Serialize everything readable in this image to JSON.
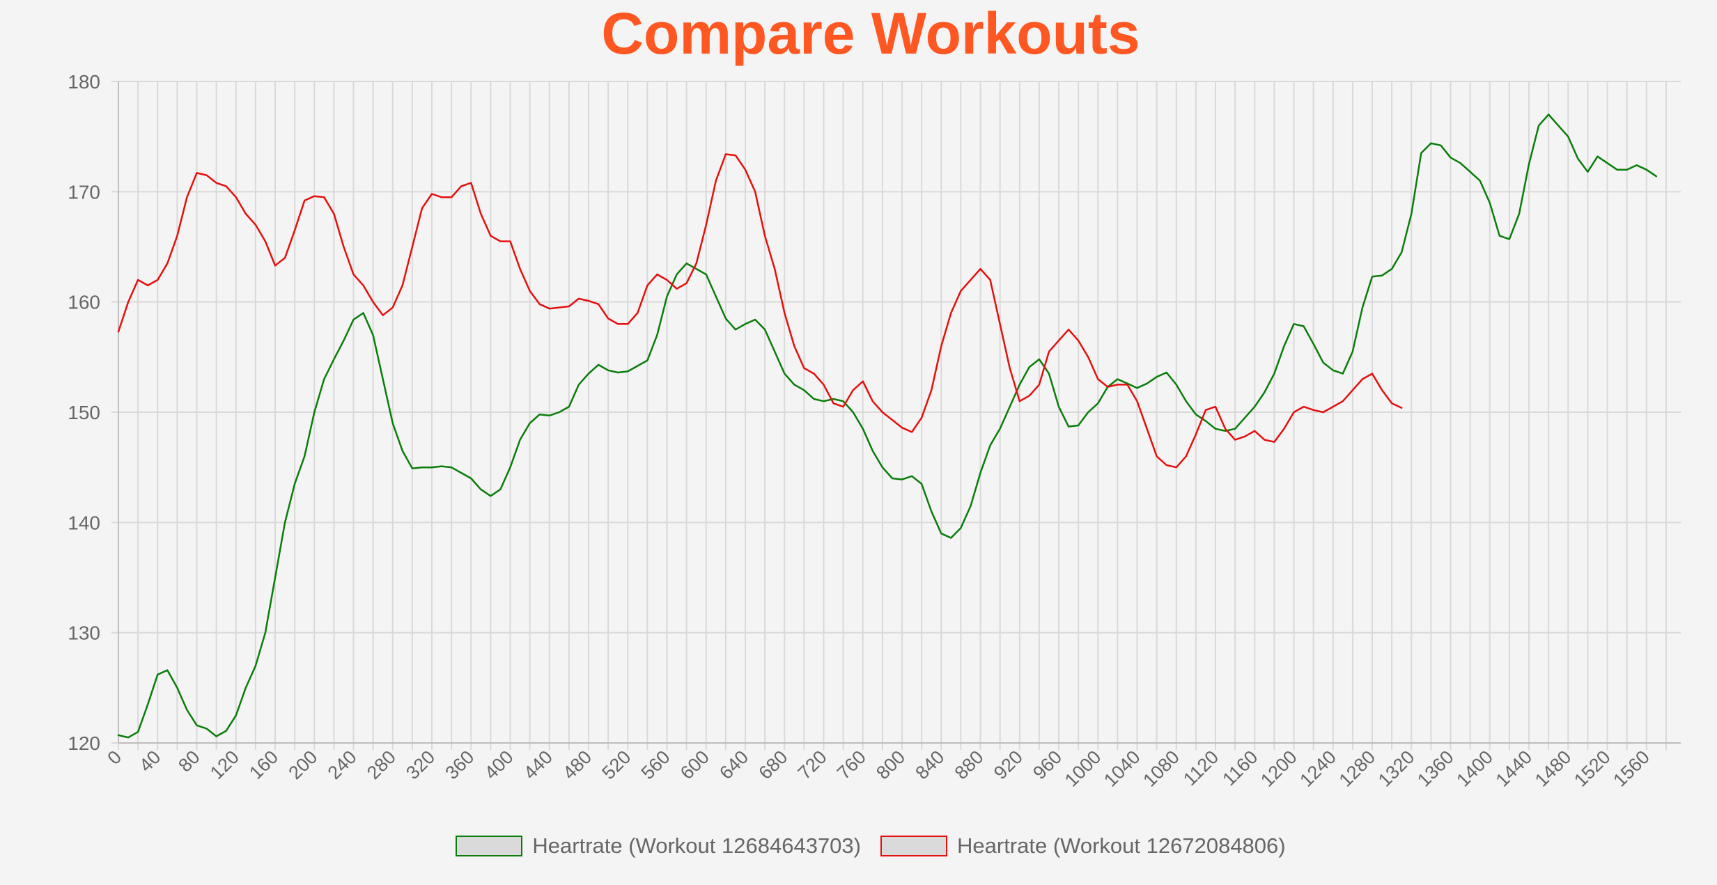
{
  "title": "Compare Workouts",
  "colors": {
    "title": "#ff5722",
    "grid": "#d9d9d9",
    "tick_text": "#666666",
    "legend_fill": "#dadada"
  },
  "chart_data": {
    "type": "line",
    "title": "Compare Workouts",
    "xlabel": "",
    "ylabel": "",
    "xlim": [
      0,
      1595
    ],
    "ylim": [
      120,
      180
    ],
    "x_tick_step": 20,
    "x_tick_labels": [
      "0",
      "40",
      "80",
      "120",
      "160",
      "200",
      "240",
      "280",
      "320",
      "360",
      "400",
      "440",
      "480",
      "520",
      "560",
      "600",
      "640",
      "680",
      "720",
      "760",
      "800",
      "840",
      "880",
      "920",
      "960",
      "1000",
      "1040",
      "1080",
      "1120",
      "1160",
      "1200",
      "1240",
      "1280",
      "1320",
      "1360",
      "1400",
      "1440",
      "1480",
      "1520",
      "1560"
    ],
    "y_ticks": [
      120,
      130,
      140,
      150,
      160,
      170,
      180
    ],
    "grid": true,
    "legend_position": "bottom-center",
    "series": [
      {
        "name": "Heartrate (Workout 12684643703)",
        "color": "#0a7d0a",
        "points": [
          [
            0,
            120.7
          ],
          [
            10,
            120.5
          ],
          [
            20,
            121
          ],
          [
            30,
            123.5
          ],
          [
            40,
            126.2
          ],
          [
            50,
            126.6
          ],
          [
            60,
            125
          ],
          [
            70,
            123
          ],
          [
            80,
            121.6
          ],
          [
            90,
            121.3
          ],
          [
            100,
            120.6
          ],
          [
            110,
            121.1
          ],
          [
            120,
            122.5
          ],
          [
            130,
            125
          ],
          [
            140,
            127
          ],
          [
            150,
            130
          ],
          [
            160,
            135
          ],
          [
            170,
            140
          ],
          [
            180,
            143.5
          ],
          [
            190,
            146
          ],
          [
            200,
            150
          ],
          [
            210,
            153
          ],
          [
            220,
            154.8
          ],
          [
            230,
            156.5
          ],
          [
            240,
            158.4
          ],
          [
            250,
            159
          ],
          [
            260,
            157
          ],
          [
            270,
            153
          ],
          [
            280,
            149
          ],
          [
            290,
            146.5
          ],
          [
            300,
            144.9
          ],
          [
            310,
            145
          ],
          [
            320,
            145
          ],
          [
            330,
            145.1
          ],
          [
            340,
            145
          ],
          [
            350,
            144.5
          ],
          [
            360,
            144
          ],
          [
            370,
            143
          ],
          [
            380,
            142.4
          ],
          [
            390,
            143
          ],
          [
            400,
            145
          ],
          [
            410,
            147.5
          ],
          [
            420,
            149
          ],
          [
            430,
            149.8
          ],
          [
            440,
            149.7
          ],
          [
            450,
            150
          ],
          [
            460,
            150.5
          ],
          [
            470,
            152.5
          ],
          [
            480,
            153.5
          ],
          [
            490,
            154.3
          ],
          [
            500,
            153.8
          ],
          [
            510,
            153.6
          ],
          [
            520,
            153.7
          ],
          [
            530,
            154.2
          ],
          [
            540,
            154.7
          ],
          [
            550,
            157
          ],
          [
            560,
            160.5
          ],
          [
            570,
            162.5
          ],
          [
            580,
            163.5
          ],
          [
            590,
            163
          ],
          [
            600,
            162.5
          ],
          [
            610,
            160.5
          ],
          [
            620,
            158.5
          ],
          [
            630,
            157.5
          ],
          [
            640,
            158
          ],
          [
            650,
            158.4
          ],
          [
            660,
            157.5
          ],
          [
            670,
            155.5
          ],
          [
            680,
            153.5
          ],
          [
            690,
            152.5
          ],
          [
            700,
            152
          ],
          [
            710,
            151.2
          ],
          [
            720,
            151
          ],
          [
            730,
            151.2
          ],
          [
            740,
            151
          ],
          [
            750,
            150
          ],
          [
            760,
            148.5
          ],
          [
            770,
            146.5
          ],
          [
            780,
            145
          ],
          [
            790,
            144
          ],
          [
            800,
            143.9
          ],
          [
            810,
            144.2
          ],
          [
            820,
            143.5
          ],
          [
            830,
            141
          ],
          [
            840,
            139
          ],
          [
            850,
            138.6
          ],
          [
            860,
            139.5
          ],
          [
            870,
            141.5
          ],
          [
            880,
            144.5
          ],
          [
            890,
            147
          ],
          [
            900,
            148.5
          ],
          [
            910,
            150.5
          ],
          [
            920,
            152.5
          ],
          [
            930,
            154.1
          ],
          [
            940,
            154.8
          ],
          [
            950,
            153.5
          ],
          [
            960,
            150.5
          ],
          [
            970,
            148.7
          ],
          [
            980,
            148.8
          ],
          [
            990,
            150
          ],
          [
            1000,
            150.8
          ],
          [
            1010,
            152.3
          ],
          [
            1020,
            153
          ],
          [
            1030,
            152.6
          ],
          [
            1040,
            152.2
          ],
          [
            1050,
            152.6
          ],
          [
            1060,
            153.2
          ],
          [
            1070,
            153.6
          ],
          [
            1080,
            152.5
          ],
          [
            1090,
            151
          ],
          [
            1100,
            149.8
          ],
          [
            1110,
            149.2
          ],
          [
            1120,
            148.5
          ],
          [
            1130,
            148.3
          ],
          [
            1140,
            148.5
          ],
          [
            1150,
            149.5
          ],
          [
            1160,
            150.5
          ],
          [
            1170,
            151.8
          ],
          [
            1180,
            153.5
          ],
          [
            1190,
            156
          ],
          [
            1200,
            158
          ],
          [
            1210,
            157.8
          ],
          [
            1220,
            156.2
          ],
          [
            1230,
            154.5
          ],
          [
            1240,
            153.8
          ],
          [
            1250,
            153.5
          ],
          [
            1260,
            155.5
          ],
          [
            1270,
            159.5
          ],
          [
            1280,
            162.3
          ],
          [
            1290,
            162.4
          ],
          [
            1300,
            163
          ],
          [
            1310,
            164.5
          ],
          [
            1320,
            168
          ],
          [
            1330,
            173.5
          ],
          [
            1340,
            174.4
          ],
          [
            1350,
            174.2
          ],
          [
            1360,
            173.1
          ],
          [
            1370,
            172.6
          ],
          [
            1380,
            171.8
          ],
          [
            1390,
            171
          ],
          [
            1400,
            169
          ],
          [
            1410,
            166
          ],
          [
            1420,
            165.7
          ],
          [
            1430,
            168
          ],
          [
            1440,
            172.5
          ],
          [
            1450,
            176
          ],
          [
            1460,
            177
          ],
          [
            1470,
            176
          ],
          [
            1480,
            175
          ],
          [
            1490,
            173
          ],
          [
            1500,
            171.8
          ],
          [
            1510,
            173.2
          ],
          [
            1520,
            172.6
          ],
          [
            1530,
            172
          ],
          [
            1540,
            172
          ],
          [
            1550,
            172.4
          ],
          [
            1560,
            172
          ],
          [
            1570,
            171.4
          ]
        ]
      },
      {
        "name": "Heartrate (Workout 12672084806)",
        "color": "#e60f0f",
        "points": [
          [
            0,
            157.3
          ],
          [
            10,
            160
          ],
          [
            20,
            162
          ],
          [
            30,
            161.5
          ],
          [
            40,
            162
          ],
          [
            50,
            163.5
          ],
          [
            60,
            166
          ],
          [
            70,
            169.5
          ],
          [
            80,
            171.7
          ],
          [
            90,
            171.5
          ],
          [
            100,
            170.8
          ],
          [
            110,
            170.5
          ],
          [
            120,
            169.5
          ],
          [
            130,
            168
          ],
          [
            140,
            167
          ],
          [
            150,
            165.5
          ],
          [
            160,
            163.3
          ],
          [
            170,
            164
          ],
          [
            180,
            166.5
          ],
          [
            190,
            169.2
          ],
          [
            200,
            169.6
          ],
          [
            210,
            169.5
          ],
          [
            220,
            168
          ],
          [
            230,
            165
          ],
          [
            240,
            162.5
          ],
          [
            250,
            161.5
          ],
          [
            260,
            160
          ],
          [
            270,
            158.8
          ],
          [
            280,
            159.5
          ],
          [
            290,
            161.5
          ],
          [
            300,
            165
          ],
          [
            310,
            168.5
          ],
          [
            320,
            169.8
          ],
          [
            330,
            169.5
          ],
          [
            340,
            169.5
          ],
          [
            350,
            170.5
          ],
          [
            360,
            170.8
          ],
          [
            370,
            168
          ],
          [
            380,
            166
          ],
          [
            390,
            165.5
          ],
          [
            400,
            165.5
          ],
          [
            410,
            163
          ],
          [
            420,
            161
          ],
          [
            430,
            159.8
          ],
          [
            440,
            159.4
          ],
          [
            450,
            159.5
          ],
          [
            460,
            159.6
          ],
          [
            470,
            160.3
          ],
          [
            480,
            160.1
          ],
          [
            490,
            159.8
          ],
          [
            500,
            158.5
          ],
          [
            510,
            158
          ],
          [
            520,
            158
          ],
          [
            530,
            159
          ],
          [
            540,
            161.5
          ],
          [
            550,
            162.5
          ],
          [
            560,
            162
          ],
          [
            570,
            161.2
          ],
          [
            580,
            161.7
          ],
          [
            590,
            163.5
          ],
          [
            600,
            167
          ],
          [
            610,
            171
          ],
          [
            620,
            173.4
          ],
          [
            630,
            173.3
          ],
          [
            640,
            172
          ],
          [
            650,
            170
          ],
          [
            660,
            166
          ],
          [
            670,
            163
          ],
          [
            680,
            159
          ],
          [
            690,
            156
          ],
          [
            700,
            154
          ],
          [
            710,
            153.5
          ],
          [
            720,
            152.5
          ],
          [
            730,
            150.8
          ],
          [
            740,
            150.5
          ],
          [
            750,
            152
          ],
          [
            760,
            152.8
          ],
          [
            770,
            151
          ],
          [
            780,
            150
          ],
          [
            790,
            149.3
          ],
          [
            800,
            148.6
          ],
          [
            810,
            148.2
          ],
          [
            820,
            149.5
          ],
          [
            830,
            152
          ],
          [
            840,
            156
          ],
          [
            850,
            159
          ],
          [
            860,
            161
          ],
          [
            870,
            162
          ],
          [
            880,
            163
          ],
          [
            890,
            162
          ],
          [
            900,
            158
          ],
          [
            910,
            154
          ],
          [
            920,
            151
          ],
          [
            930,
            151.5
          ],
          [
            940,
            152.5
          ],
          [
            950,
            155.5
          ],
          [
            960,
            156.5
          ],
          [
            970,
            157.5
          ],
          [
            980,
            156.5
          ],
          [
            990,
            155
          ],
          [
            1000,
            153
          ],
          [
            1010,
            152.3
          ],
          [
            1020,
            152.5
          ],
          [
            1030,
            152.5
          ],
          [
            1040,
            151
          ],
          [
            1050,
            148.5
          ],
          [
            1060,
            146
          ],
          [
            1070,
            145.2
          ],
          [
            1080,
            145
          ],
          [
            1090,
            146
          ],
          [
            1100,
            148
          ],
          [
            1110,
            150.2
          ],
          [
            1120,
            150.5
          ],
          [
            1130,
            148.5
          ],
          [
            1140,
            147.5
          ],
          [
            1150,
            147.8
          ],
          [
            1160,
            148.3
          ],
          [
            1170,
            147.5
          ],
          [
            1180,
            147.3
          ],
          [
            1190,
            148.5
          ],
          [
            1200,
            150
          ],
          [
            1210,
            150.5
          ],
          [
            1220,
            150.2
          ],
          [
            1230,
            150
          ],
          [
            1240,
            150.5
          ],
          [
            1250,
            151
          ],
          [
            1260,
            152
          ],
          [
            1270,
            153
          ],
          [
            1280,
            153.5
          ],
          [
            1290,
            152
          ],
          [
            1300,
            150.8
          ],
          [
            1310,
            150.4
          ]
        ]
      }
    ]
  }
}
